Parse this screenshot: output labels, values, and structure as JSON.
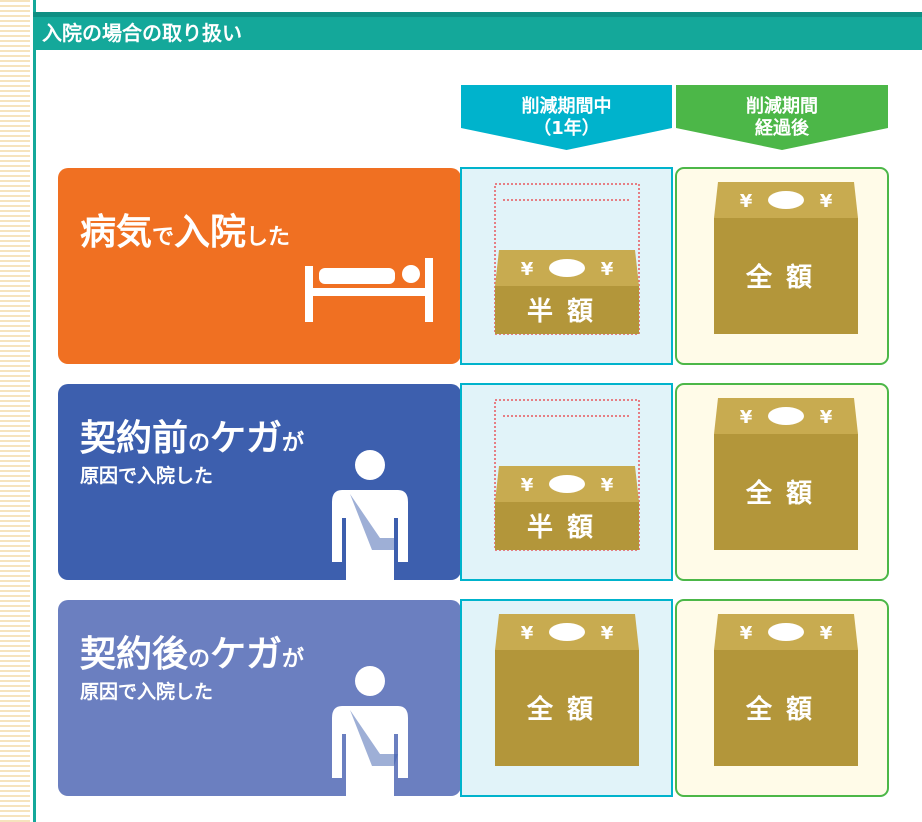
{
  "header": {
    "title": "入院の場合の取り扱い"
  },
  "columns": [
    {
      "lines": [
        "削減期間中",
        "（1年）"
      ]
    },
    {
      "lines": [
        "削減期間",
        "経過後"
      ]
    }
  ],
  "box_symbol": "¥",
  "rows": [
    {
      "label_parts": [
        "病気",
        "で",
        "入院",
        "した"
      ],
      "cells": [
        "半額",
        "全額"
      ]
    },
    {
      "label_parts": [
        "契約前",
        "の",
        "ケガ",
        "が"
      ],
      "sub_label": "原因で入院した",
      "cells": [
        "半額",
        "全額"
      ]
    },
    {
      "label_parts": [
        "契約後",
        "の",
        "ケガ",
        "が"
      ],
      "sub_label": "原因で入院した",
      "cells": [
        "全額",
        "全額"
      ]
    }
  ]
}
